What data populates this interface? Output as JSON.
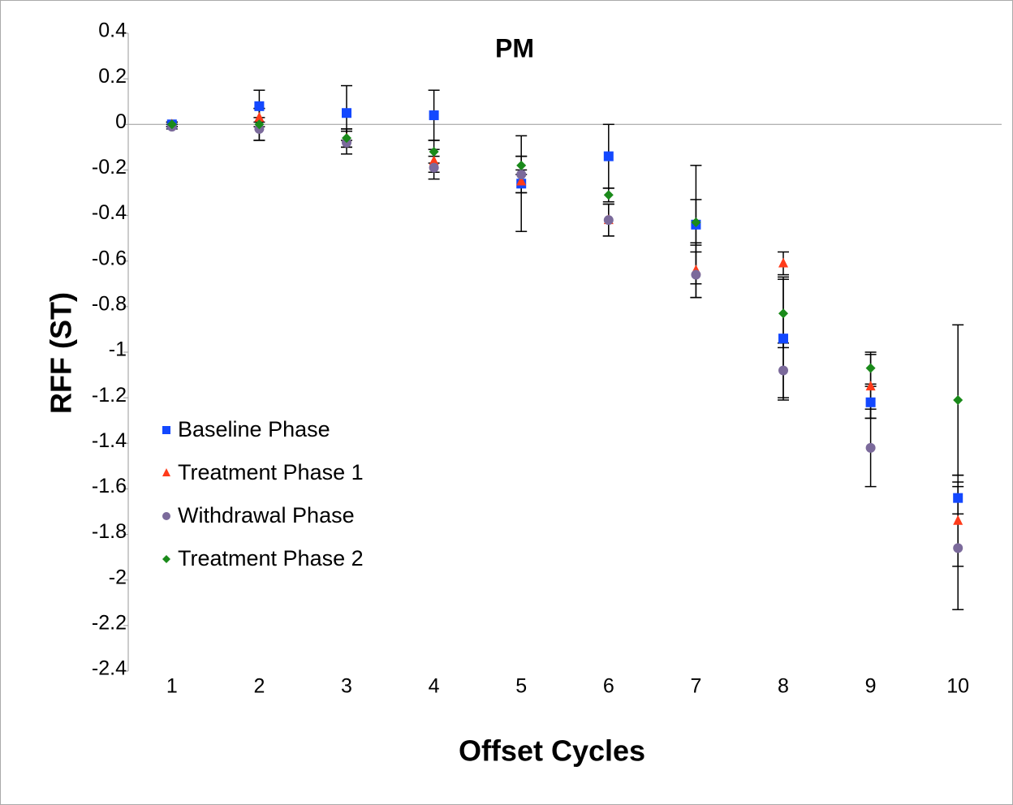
{
  "chart_data": {
    "type": "scatter",
    "title": "PM",
    "x_label": "Offset Cycles",
    "y_label": "RFF (ST)",
    "x": [
      1,
      2,
      3,
      4,
      5,
      6,
      7,
      8,
      9,
      10
    ],
    "xlim": [
      0.5,
      10.5
    ],
    "xticks": [
      1,
      2,
      3,
      4,
      5,
      6,
      7,
      8,
      9,
      10
    ],
    "ylim": [
      -2.4,
      0.4
    ],
    "yticks": [
      0.4,
      0.2,
      0,
      -0.2,
      -0.4,
      -0.6,
      -0.8,
      -1,
      -1.2,
      -1.4,
      -1.6,
      -1.8,
      -2,
      -2.2,
      -2.4
    ],
    "legend": "lower left",
    "series": [
      {
        "name": "Baseline Phase",
        "color": "#1348ff",
        "marker": "square",
        "values": [
          0,
          0.08,
          0.05,
          0.04,
          -0.26,
          -0.14,
          -0.44,
          -0.94,
          -1.22,
          -1.64
        ],
        "errors": [
          0.01,
          0.07,
          0.12,
          0.11,
          0.21,
          0.14,
          0.26,
          0.27,
          0.07,
          0.07
        ]
      },
      {
        "name": "Treatment Phase 1",
        "color": "#ff3b1a",
        "marker": "triangle",
        "values": [
          0,
          0.03,
          -0.06,
          -0.16,
          -0.25,
          -0.42,
          -0.64,
          -0.61,
          -1.15,
          -1.74
        ],
        "errors": [
          0.01,
          0.04,
          0.04,
          0.05,
          0.05,
          0.07,
          0.12,
          0.05,
          0.14,
          0.2
        ]
      },
      {
        "name": "Withdrawal Phase",
        "color": "#7b6a9b",
        "marker": "circle",
        "values": [
          -0.01,
          -0.02,
          -0.08,
          -0.19,
          -0.22,
          -0.42,
          -0.66,
          -1.08,
          -1.42,
          -1.86
        ],
        "errors": [
          0.01,
          0.05,
          0.05,
          0.05,
          0.08,
          0.07,
          0.1,
          0.12,
          0.17,
          0.27
        ]
      },
      {
        "name": "Treatment Phase 2",
        "color": "#1a8a1a",
        "marker": "diamond",
        "values": [
          0,
          0,
          -0.06,
          -0.12,
          -0.18,
          -0.31,
          -0.43,
          -0.83,
          -1.07,
          -1.21
        ],
        "errors": [
          0.01,
          0.07,
          0.04,
          0.05,
          0.04,
          0.03,
          0.1,
          0.15,
          0.07,
          0.33
        ]
      }
    ]
  }
}
